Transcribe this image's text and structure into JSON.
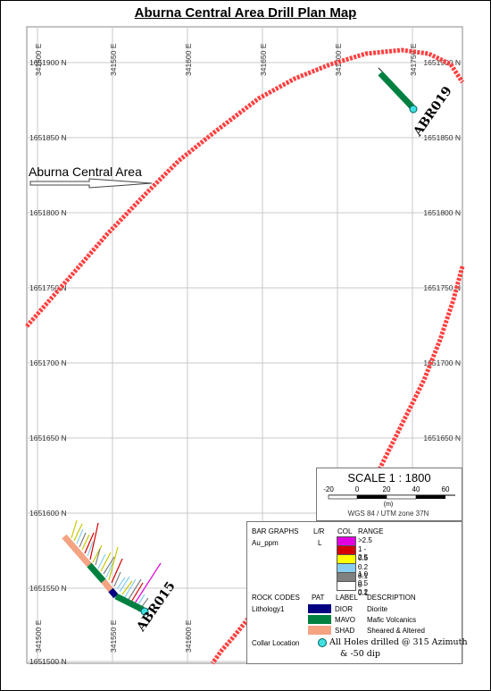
{
  "title": "Aburna Central Area Drill Plan Map",
  "grid": {
    "eastings": [
      "341500 E",
      "341550 E",
      "341600 E",
      "341650 E",
      "341700 E",
      "341750 E"
    ],
    "northings": [
      "1651900 N",
      "1651850 N",
      "1651800 N",
      "1651750 N",
      "1651700 N",
      "1651650 N",
      "1651600 N",
      "1651550 N",
      "1651500 N"
    ],
    "bottom_eastings": [
      "341500 E",
      "341550 E",
      "341600 E"
    ]
  },
  "area_label": "Aburna Central Area",
  "holes": [
    {
      "id": "ABR019"
    },
    {
      "id": "ABR015"
    }
  ],
  "scale": {
    "title": "SCALE  1 : 1800",
    "ticks": [
      "-20",
      "0",
      "20",
      "40",
      "60"
    ],
    "unit": "(m)",
    "projection": "WGS 84 / UTM zone 37N"
  },
  "legend": {
    "bar_graphs_header": "BAR GRAPHS",
    "lr_header": "L/R",
    "col_header": "COL",
    "range_header": "RANGE",
    "variable": "Au_ppm",
    "side": "L",
    "ranges": [
      {
        "label": ">2.5",
        "color": "#e000e0"
      },
      {
        "label": "1 - 2.5",
        "color": "#d40000"
      },
      {
        "label": "0.5 - 1.0",
        "color": "#ffff00"
      },
      {
        "label": "0.2 - 0.5",
        "color": "#87cdf0"
      },
      {
        "label": "0.1 - 0.2",
        "color": "#808080"
      },
      {
        "label": "0 - 0.1",
        "color": "#ffffff"
      }
    ],
    "rock_codes_header": "ROCK CODES",
    "pat_header": "PAT",
    "label_header": "LABEL",
    "description_header": "DESCRIPTION",
    "lithology_name": "Lithology1",
    "rocks": [
      {
        "code": "DIOR",
        "description": "Diorite",
        "color": "#000080"
      },
      {
        "code": "MAVO",
        "description": "Mafic Volcanics",
        "color": "#008040"
      },
      {
        "code": "SHAD",
        "description": "Sheared & Altered",
        "color": "#f4a383"
      }
    ],
    "collar_label": "Collar Location",
    "collar_note_1": "All Holes drilled @ 315 Azimuth",
    "collar_note_2": "& -50 dip"
  }
}
